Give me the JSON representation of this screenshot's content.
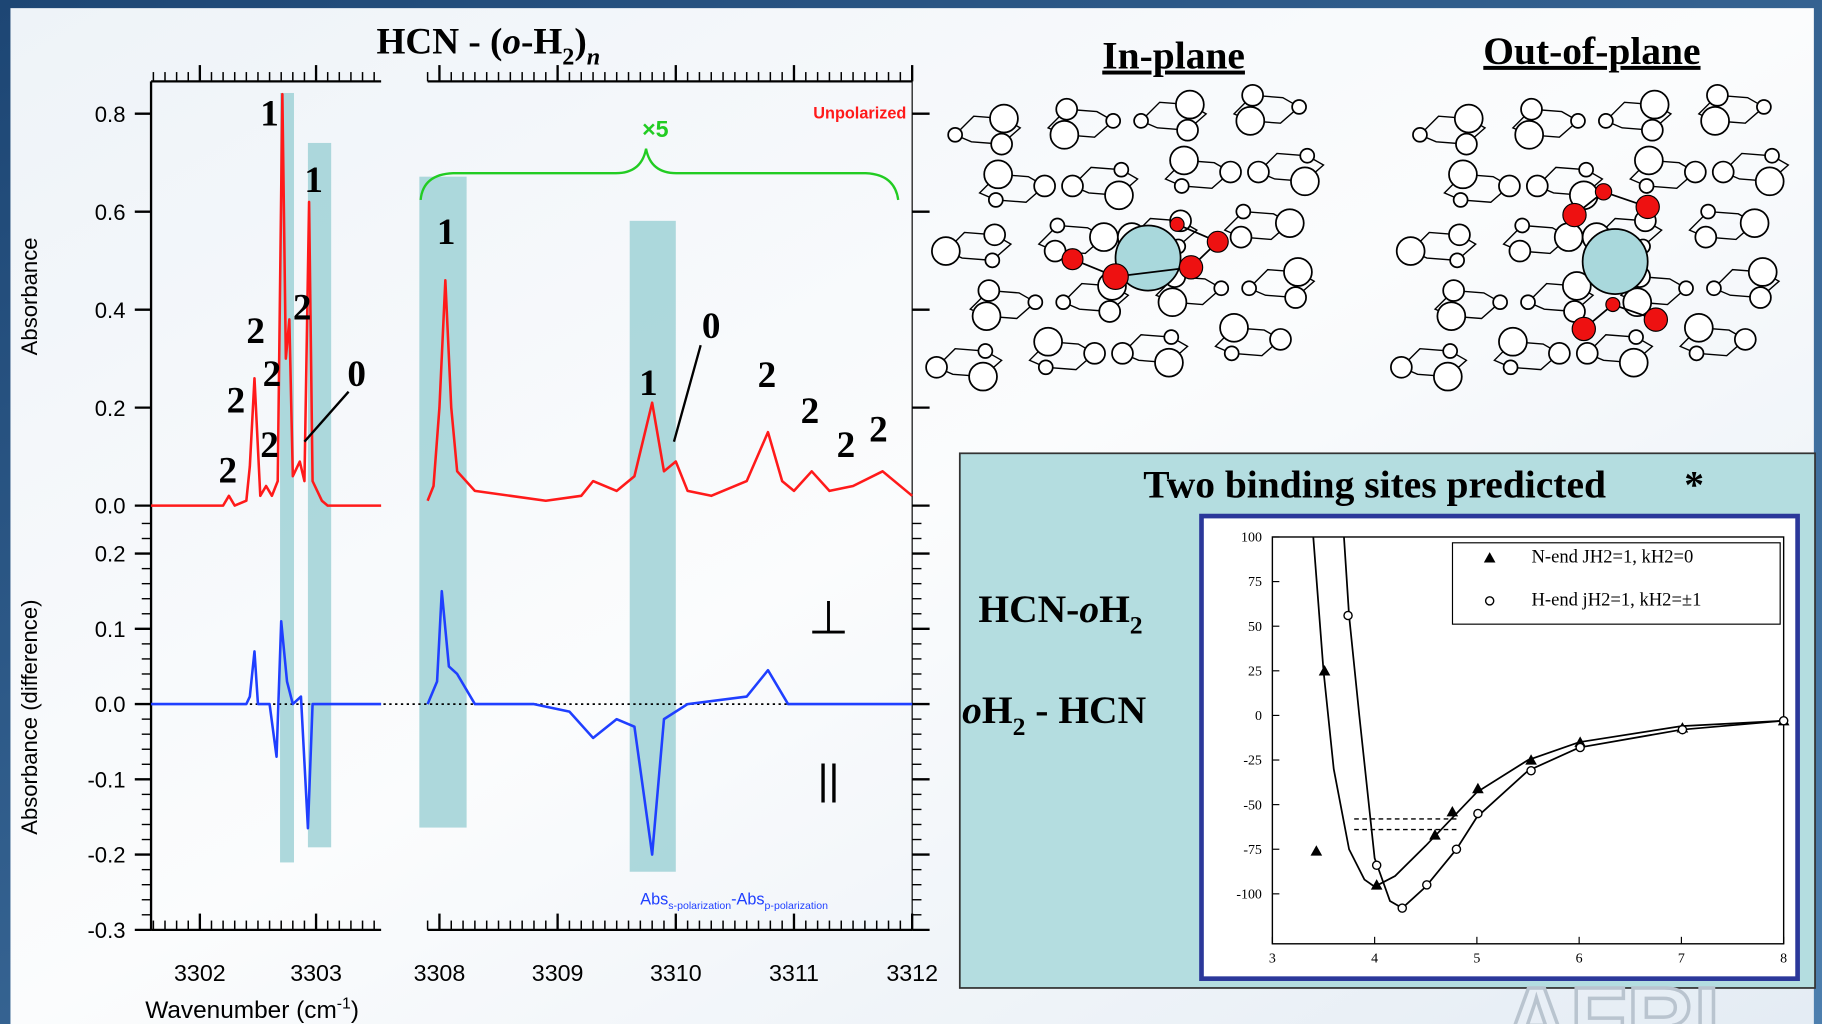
{
  "chart_data": [
    {
      "type": "line",
      "title_parts": [
        "HCN - (",
        "o",
        "-H",
        "2",
        ")",
        "n"
      ],
      "ylabel": "Absorbance",
      "xlim": [
        3301.58,
        3312
      ],
      "xbreak": [
        3303.56,
        3307.9
      ],
      "ylim": [
        0,
        0.866
      ],
      "yticks": [
        {
          "value": 0,
          "label": "0.0"
        },
        0.2,
        0.4,
        0.6,
        0.8
      ],
      "minor_xtick_step": 0.1,
      "series": [
        {
          "name": "Unpolarized",
          "color": "#ff1a1a",
          "x": [
            3301.58,
            3302.2,
            3302.25,
            3302.3,
            3302.4,
            3302.43,
            3302.47,
            3302.52,
            3302.57,
            3302.62,
            3302.67,
            3302.71,
            3302.74,
            3302.77,
            3302.8,
            3302.86,
            3302.9,
            3302.94,
            3302.97,
            3303.05,
            3303.1,
            3303.56,
            3305.7,
            3307.9,
            3307.95,
            3308.0,
            3308.05,
            3308.1,
            3308.15,
            3308.3,
            3308.6,
            3308.9,
            3309.2,
            3309.3,
            3309.5,
            3309.65,
            3309.8,
            3309.9,
            3310.0,
            3310.1,
            3310.3,
            3310.6,
            3310.78,
            3310.9,
            3311.0,
            3311.15,
            3311.3,
            3311.5,
            3311.75,
            3312.0
          ],
          "values": [
            0.0,
            0.0,
            0.02,
            0.0,
            0.01,
            0.08,
            0.26,
            0.02,
            0.04,
            0.02,
            0.05,
            0.84,
            0.3,
            0.38,
            0.06,
            0.09,
            0.05,
            0.62,
            0.05,
            0.01,
            0.0,
            0.0,
            null,
            0.01,
            0.04,
            0.2,
            0.46,
            0.2,
            0.07,
            0.03,
            0.02,
            0.01,
            0.02,
            0.05,
            0.03,
            0.06,
            0.21,
            0.07,
            0.09,
            0.03,
            0.02,
            0.05,
            0.15,
            0.05,
            0.03,
            0.07,
            0.03,
            0.04,
            0.07,
            0.02
          ]
        }
      ],
      "highlight_bands": [
        [
          3302.69,
          3302.81
        ],
        [
          3302.93,
          3303.13
        ],
        [
          3307.83,
          3308.23
        ],
        [
          3309.61,
          3310.0
        ]
      ],
      "peak_labels": [
        "1",
        "1",
        "2",
        "2",
        "2",
        "0",
        "2",
        "2",
        "2",
        "1",
        "0",
        "1",
        "2",
        "2",
        "2",
        "2"
      ],
      "scale_label": "×5"
    },
    {
      "type": "line",
      "ylabel": "Absorbance (difference)",
      "xlabel_parts": [
        "Wavenumber (cm",
        "-1",
        ")"
      ],
      "xlim": [
        3301.58,
        3312
      ],
      "xbreak": [
        3303.56,
        3307.9
      ],
      "ylim": [
        -0.3,
        0.256
      ],
      "yticks": [
        -0.3,
        -0.2,
        -0.1,
        {
          "value": 0,
          "label": "0.0"
        },
        0.1,
        0.2
      ],
      "xticks": [
        3302,
        3303,
        3308,
        3309,
        3310,
        3311,
        3312
      ],
      "minor_ytick_step": 0.02,
      "zero_line": true,
      "series": [
        {
          "color": "#1f3fff",
          "x": [
            3301.58,
            3302.4,
            3302.43,
            3302.47,
            3302.5,
            3302.6,
            3302.66,
            3302.7,
            3302.75,
            3302.8,
            3302.87,
            3302.93,
            3302.97,
            3303.56,
            3305.7,
            3307.9,
            3307.98,
            3308.02,
            3308.08,
            3308.15,
            3308.3,
            3308.8,
            3309.1,
            3309.3,
            3309.5,
            3309.65,
            3309.8,
            3309.9,
            3310.1,
            3310.6,
            3310.78,
            3310.95,
            3311.5,
            3312.0
          ],
          "values": [
            0,
            0,
            0.01,
            0.07,
            0,
            0,
            -0.07,
            0.11,
            0.03,
            0,
            0.01,
            -0.165,
            0,
            0,
            null,
            0,
            0.03,
            0.15,
            0.05,
            0.04,
            0,
            0,
            -0.01,
            -0.045,
            -0.02,
            -0.03,
            -0.2,
            -0.02,
            0,
            0.01,
            0.045,
            0,
            0,
            0
          ]
        }
      ],
      "polarization_labels": [
        "⊥",
        "||"
      ],
      "difference_label_parts": [
        "Abs",
        "s-polarization",
        "-Abs",
        "p-polarization"
      ]
    },
    {
      "type": "scatter",
      "xlim": [
        3,
        8
      ],
      "ylim": [
        -128,
        100
      ],
      "xticks": [
        3,
        4,
        5,
        6,
        7,
        8
      ],
      "yticks": [
        -100,
        -75,
        -50,
        -25,
        0,
        25,
        50,
        75,
        100
      ],
      "series": [
        {
          "name": "N-end JH2=1, kH2=0",
          "marker": "triangle",
          "color": "#000000",
          "x": [
            3.43,
            3.51,
            4.02,
            4.59,
            4.76,
            5.01,
            5.53,
            6.01,
            7.01,
            8
          ],
          "values": [
            -76,
            25,
            -95,
            -67,
            -54,
            -41,
            -25,
            -15,
            -7,
            -3
          ]
        },
        {
          "name": "H-end jH2=1, kH2=±1",
          "marker": "circle",
          "color": "#000000",
          "x": [
            3.74,
            4.02,
            4.27,
            4.51,
            4.8,
            5.01,
            5.53,
            6.01,
            7.01,
            8
          ],
          "values": [
            56,
            -84,
            -108,
            -95,
            -75,
            -55,
            -31,
            -18,
            -8,
            -3
          ]
        }
      ],
      "curves": [
        {
          "x": [
            3.4,
            3.5,
            3.6,
            3.75,
            3.9,
            4.0,
            4.2,
            4.5,
            5.0,
            5.5,
            6,
            7,
            8
          ],
          "values": [
            100,
            25,
            -30,
            -75,
            -92,
            -96,
            -90,
            -73,
            -43,
            -25,
            -15,
            -6,
            -3
          ]
        },
        {
          "x": [
            3.7,
            3.75,
            3.85,
            4.0,
            4.15,
            4.27,
            4.5,
            4.8,
            5.0,
            5.5,
            6,
            7,
            8
          ],
          "values": [
            100,
            56,
            0,
            -80,
            -104,
            -108,
            -96,
            -75,
            -57,
            -31,
            -18,
            -8,
            -3
          ]
        }
      ],
      "levels": [
        -58,
        -64
      ],
      "level_xlim": [
        3.8,
        4.8
      ]
    }
  ],
  "slide": {
    "in_plane": "In-plane",
    "out_of_plane": "Out-of-plane",
    "box_title": "Two binding sites predicted",
    "box_asterisk": "*",
    "label_a_parts": [
      "HCN-",
      "o",
      "H",
      "2"
    ],
    "label_b_parts": [
      "o",
      "H",
      "2",
      " - HCN"
    ],
    "logo": "AFRL"
  }
}
